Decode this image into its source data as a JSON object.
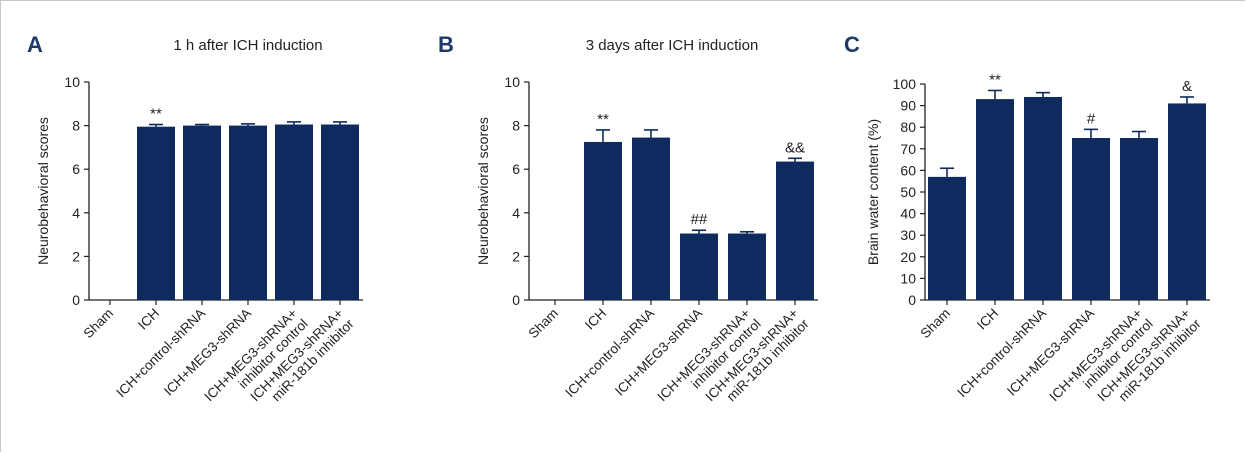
{
  "chart_data": [
    {
      "panel": "A",
      "type": "bar",
      "title": "1 h after ICH induction",
      "ylabel": "Neurobehavioral scores",
      "ylim": [
        0,
        10
      ],
      "yticks": [
        0,
        2,
        4,
        6,
        8,
        10
      ],
      "categories": [
        [
          "Sham"
        ],
        [
          "ICH"
        ],
        [
          "ICH+control-shRNA"
        ],
        [
          "ICH+MEG3-shRNA"
        ],
        [
          "ICH+MEG3-shRNA+",
          "inhibitor control"
        ],
        [
          "ICH+MEG3-shRNA+",
          "miR-181b inhibitor"
        ]
      ],
      "values": [
        0,
        7.95,
        8.0,
        8.0,
        8.05,
        8.05
      ],
      "errors": [
        0,
        0.1,
        0.05,
        0.08,
        0.12,
        0.12
      ],
      "annotations": [
        "",
        "**",
        "",
        "",
        "",
        ""
      ]
    },
    {
      "panel": "B",
      "type": "bar",
      "title": "3 days after ICH induction",
      "ylabel": "Neurobehavioral scores",
      "ylim": [
        0,
        10
      ],
      "yticks": [
        0,
        2,
        4,
        6,
        8,
        10
      ],
      "categories": [
        [
          "Sham"
        ],
        [
          "ICH"
        ],
        [
          "ICH+control-shRNA"
        ],
        [
          "ICH+MEG3-shRNA"
        ],
        [
          "ICH+MEG3-shRNA+",
          "inhibitor control"
        ],
        [
          "ICH+MEG3-shRNA+",
          "miR-181b inhibitor"
        ]
      ],
      "values": [
        0,
        7.25,
        7.45,
        3.05,
        3.05,
        6.35
      ],
      "errors": [
        0,
        0.55,
        0.35,
        0.15,
        0.08,
        0.15
      ],
      "annotations": [
        "",
        "**",
        "",
        "##",
        "",
        "&&"
      ]
    },
    {
      "panel": "C",
      "type": "bar",
      "title": "",
      "ylabel": "Brain water content (%)",
      "ylim": [
        0,
        100
      ],
      "yticks": [
        0,
        10,
        20,
        30,
        40,
        50,
        60,
        70,
        80,
        90,
        100
      ],
      "categories": [
        [
          "Sham"
        ],
        [
          "ICH"
        ],
        [
          "ICH+control-shRNA"
        ],
        [
          "ICH+MEG3-shRNA"
        ],
        [
          "ICH+MEG3-shRNA+",
          "inhibitor control"
        ],
        [
          "ICH+MEG3-shRNA+",
          "miR-181b inhibitor"
        ]
      ],
      "values": [
        57,
        93,
        94,
        75,
        75,
        91
      ],
      "errors": [
        4,
        4,
        2,
        4,
        3,
        3
      ],
      "annotations": [
        "",
        "**",
        "",
        "#",
        "",
        "&"
      ]
    }
  ],
  "colors": {
    "bar": "#0f2a5e",
    "axis": "#222222",
    "panel_letter": "#1f3a68"
  }
}
